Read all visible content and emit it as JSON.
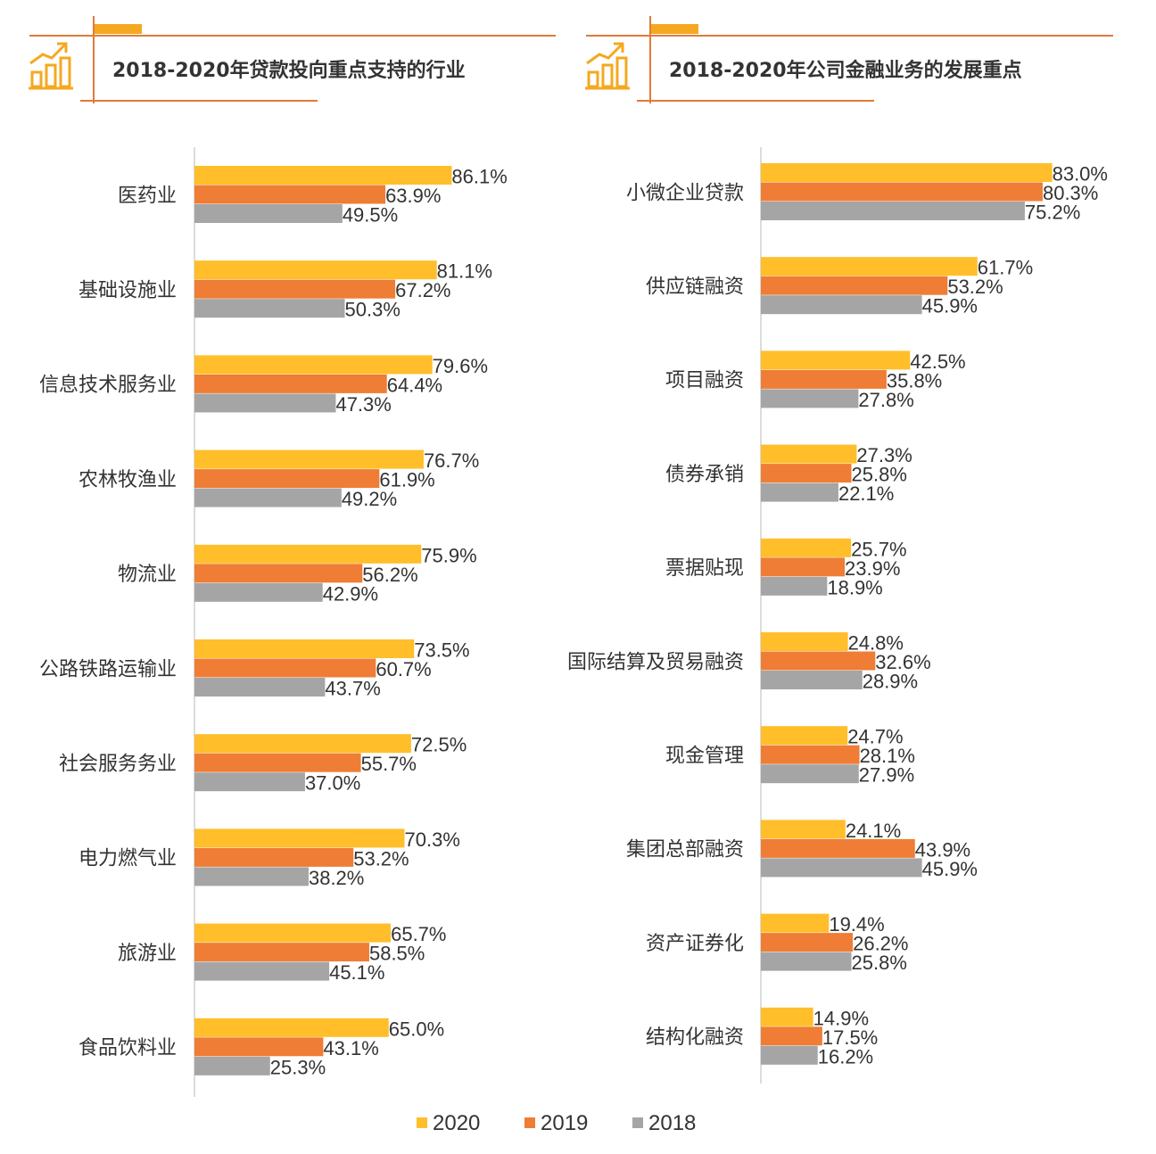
{
  "colors": {
    "2020": "#FFBE2A",
    "2019": "#EF7D35",
    "2018": "#A5A5A5",
    "header_line": "#E07B39",
    "header_tab": "#F5A81F",
    "icon": "#F5A81F",
    "axis": "#D0D0D0",
    "text": "#333333"
  },
  "header_icon": "bar-chart-growth-icon",
  "legend": [
    "2020",
    "2019",
    "2018"
  ],
  "chart_data": [
    {
      "type": "bar",
      "orientation": "horizontal",
      "title": "2018-2020年贷款投向重点支持的行业",
      "categories": [
        "医药业",
        "基础设施业",
        "信息技术服务业",
        "农林牧渔业",
        "物流业",
        "公路铁路运输业",
        "社会服务务业",
        "电力燃气业",
        "旅游业",
        "食品饮料业"
      ],
      "series": [
        {
          "name": "2020",
          "values": [
            86.1,
            81.1,
            79.6,
            76.7,
            75.9,
            73.5,
            72.5,
            70.3,
            65.7,
            65.0
          ],
          "labels": [
            "86.1%",
            "81.1%",
            "79.6%",
            "76.7%",
            "75.9%",
            "73.5%",
            "72.5%",
            "70.3%",
            "65.7%",
            "65.0%"
          ]
        },
        {
          "name": "2019",
          "values": [
            63.9,
            67.2,
            64.4,
            61.9,
            56.2,
            60.7,
            55.7,
            53.2,
            58.5,
            43.1
          ],
          "labels": [
            "63.9%",
            "67.2%",
            "64.4%",
            "61.9%",
            "56.2%",
            "60.7%",
            "55.7%",
            "53.2%",
            "58.5%",
            "43.1%"
          ]
        },
        {
          "name": "2018",
          "values": [
            49.5,
            50.3,
            47.3,
            49.2,
            42.9,
            43.7,
            37.0,
            38.2,
            45.1,
            25.3
          ],
          "labels": [
            "49.5%",
            "50.3%",
            "47.3%",
            "49.2%",
            "42.9%",
            "43.7%",
            "37.0%",
            "38.2%",
            "45.1%",
            "25.3%"
          ]
        }
      ],
      "xlim": [
        0,
        100
      ],
      "grid": false
    },
    {
      "type": "bar",
      "orientation": "horizontal",
      "title": "2018-2020年公司金融业务的发展重点",
      "categories": [
        "小微企业贷款",
        "供应链融资",
        "项目融资",
        "债券承销",
        "票据贴现",
        "国际结算及贸易融资",
        "现金管理",
        "集团总部融资",
        "资产证券化",
        "结构化融资"
      ],
      "series": [
        {
          "name": "2020",
          "values": [
            83.0,
            61.7,
            42.5,
            27.3,
            25.7,
            24.8,
            24.7,
            24.1,
            19.4,
            14.9
          ],
          "labels": [
            "83.0%",
            "61.7%",
            "42.5%",
            "27.3%",
            "25.7%",
            "24.8%",
            "24.7%",
            "24.1%",
            "19.4%",
            "14.9%"
          ]
        },
        {
          "name": "2019",
          "values": [
            80.3,
            53.2,
            35.8,
            25.8,
            23.9,
            32.6,
            28.1,
            43.9,
            26.2,
            17.5
          ],
          "labels": [
            "80.3%",
            "53.2%",
            "35.8%",
            "25.8%",
            "23.9%",
            "32.6%",
            "28.1%",
            "43.9%",
            "26.2%",
            "17.5%"
          ]
        },
        {
          "name": "2018",
          "values": [
            75.2,
            45.9,
            27.8,
            22.1,
            18.9,
            28.9,
            27.9,
            45.9,
            25.8,
            16.2
          ],
          "labels": [
            "75.2%",
            "45.9%",
            "27.8%",
            "22.1%",
            "18.9%",
            "28.9%",
            "27.9%",
            "45.9%",
            "25.8%",
            "16.2%"
          ]
        }
      ],
      "xlim": [
        0,
        100
      ],
      "grid": false
    }
  ]
}
